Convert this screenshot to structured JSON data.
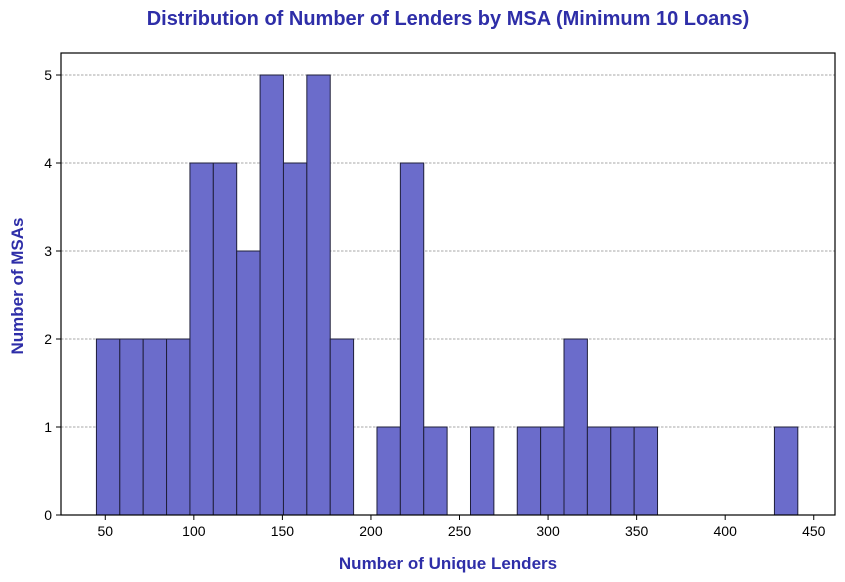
{
  "chart_data": {
    "type": "bar",
    "title": "Distribution of Number of Lenders by MSA (Minimum 10 Loans)",
    "xlabel": "Number of Unique Lenders",
    "ylabel": "Number of MSAs",
    "xlim": [
      25,
      462
    ],
    "ylim": [
      0,
      5.25
    ],
    "xticks": [
      50,
      100,
      150,
      200,
      250,
      300,
      350,
      400,
      450
    ],
    "yticks": [
      0,
      1,
      2,
      3,
      4,
      5
    ],
    "grid": "horizontal dashed",
    "bins": [
      {
        "x0": 45.0,
        "x1": 58.2,
        "count": 2
      },
      {
        "x0": 58.2,
        "x1": 71.4,
        "count": 2
      },
      {
        "x0": 71.4,
        "x1": 84.6,
        "count": 2
      },
      {
        "x0": 84.6,
        "x1": 97.8,
        "count": 2
      },
      {
        "x0": 97.8,
        "x1": 111.0,
        "count": 4
      },
      {
        "x0": 111.0,
        "x1": 124.2,
        "count": 4
      },
      {
        "x0": 124.2,
        "x1": 137.4,
        "count": 3
      },
      {
        "x0": 137.4,
        "x1": 150.6,
        "count": 5
      },
      {
        "x0": 150.6,
        "x1": 163.8,
        "count": 4
      },
      {
        "x0": 163.8,
        "x1": 177.0,
        "count": 5
      },
      {
        "x0": 177.0,
        "x1": 190.2,
        "count": 2
      },
      {
        "x0": 190.2,
        "x1": 203.4,
        "count": 0
      },
      {
        "x0": 203.4,
        "x1": 216.6,
        "count": 1
      },
      {
        "x0": 216.6,
        "x1": 229.8,
        "count": 4
      },
      {
        "x0": 229.8,
        "x1": 243.0,
        "count": 1
      },
      {
        "x0": 243.0,
        "x1": 256.2,
        "count": 0
      },
      {
        "x0": 256.2,
        "x1": 269.4,
        "count": 1
      },
      {
        "x0": 269.4,
        "x1": 282.6,
        "count": 0
      },
      {
        "x0": 282.6,
        "x1": 295.8,
        "count": 1
      },
      {
        "x0": 295.8,
        "x1": 309.0,
        "count": 1
      },
      {
        "x0": 309.0,
        "x1": 322.2,
        "count": 2
      },
      {
        "x0": 322.2,
        "x1": 335.4,
        "count": 1
      },
      {
        "x0": 335.4,
        "x1": 348.6,
        "count": 1
      },
      {
        "x0": 348.6,
        "x1": 361.8,
        "count": 1
      },
      {
        "x0": 361.8,
        "x1": 375.0,
        "count": 0
      },
      {
        "x0": 375.0,
        "x1": 388.2,
        "count": 0
      },
      {
        "x0": 388.2,
        "x1": 401.4,
        "count": 0
      },
      {
        "x0": 401.4,
        "x1": 414.6,
        "count": 0
      },
      {
        "x0": 414.6,
        "x1": 427.8,
        "count": 0
      },
      {
        "x0": 427.8,
        "x1": 441.0,
        "count": 1
      }
    ],
    "colors": {
      "bar_fill": "#6b6ccb",
      "bar_edge": "#1f1f3a",
      "title": "#2e2ea8",
      "axis_label": "#2e2ea8",
      "grid": "#8a8a8a"
    }
  }
}
